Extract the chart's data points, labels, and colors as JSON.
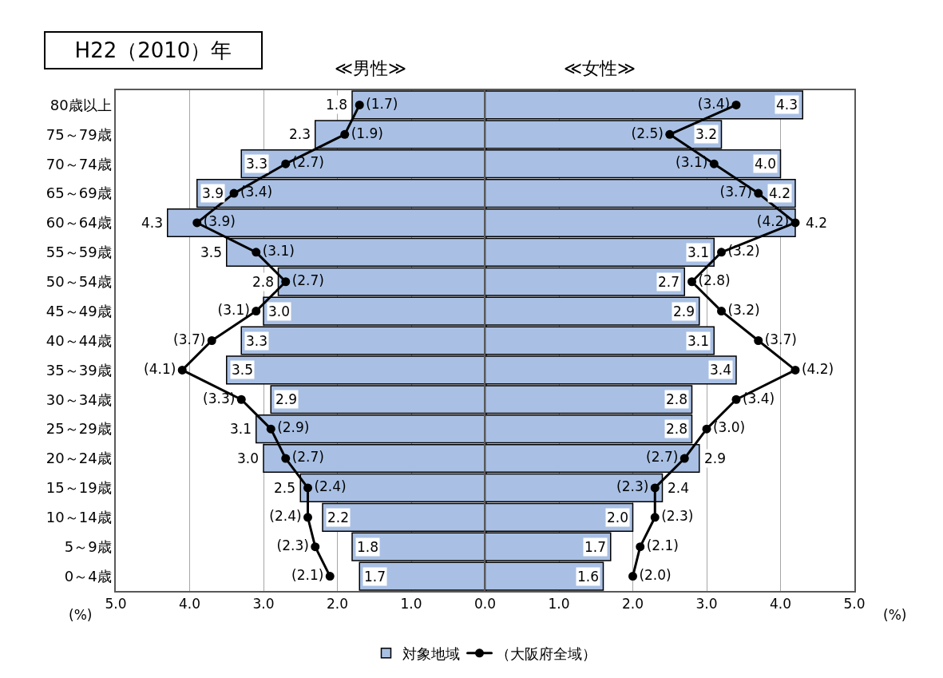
{
  "chart_data": [
    {
      "type": "bar",
      "orientation": "horizontal",
      "title": "≪男性≫",
      "xlabel": "(%)",
      "annotations": [
        "H22（2010）年"
      ],
      "categories": [
        "80歳以上",
        "75～79歳",
        "70～74歳",
        "65～69歳",
        "60～64歳",
        "55～59歳",
        "50～54歳",
        "45～49歳",
        "40～44歳",
        "35～39歳",
        "30～34歳",
        "25～29歳",
        "20～24歳",
        "15～19歳",
        "10～14歳",
        "5～9歳",
        "0～4歳"
      ],
      "series": [
        {
          "name": "対象地域",
          "color": "#a9c0e4",
          "values": [
            1.8,
            2.3,
            3.3,
            3.9,
            4.3,
            3.5,
            2.8,
            3.0,
            3.3,
            3.5,
            2.9,
            3.1,
            3.0,
            2.5,
            2.2,
            1.8,
            1.7
          ],
          "value_labels": [
            "1.8",
            "2.3",
            "3.3",
            "3.9",
            "4.3",
            "3.5",
            "2.8",
            "3.0",
            "3.3",
            "3.5",
            "2.9",
            "3.1",
            "3.0",
            "2.5",
            "2.2",
            "1.8",
            "1.7"
          ]
        },
        {
          "name": "（大阪府全域）",
          "type": "line",
          "color": "#000000",
          "values": [
            1.7,
            1.9,
            2.7,
            3.4,
            3.9,
            3.1,
            2.7,
            3.1,
            3.7,
            4.1,
            3.3,
            2.9,
            2.7,
            2.4,
            2.4,
            2.3,
            2.1
          ],
          "value_labels": [
            "(1.7)",
            "(1.9)",
            "(2.7)",
            "(3.4)",
            "(3.9)",
            "(3.1)",
            "(2.7)",
            "(3.1)",
            "(3.7)",
            "(4.1)",
            "(3.3)",
            "(2.9)",
            "(2.7)",
            "(2.4)",
            "(2.4)",
            "(2.3)",
            "(2.1)"
          ]
        }
      ],
      "xlim": [
        5,
        0
      ],
      "xticks": [
        {
          "value": 5,
          "label": "5.0"
        },
        {
          "value": 4,
          "label": "4.0"
        },
        {
          "value": 3,
          "label": "3.0"
        },
        {
          "value": 2,
          "label": "2.0"
        },
        {
          "value": 1,
          "label": "1.0"
        },
        {
          "value": 0,
          "label": "0.0"
        }
      ],
      "grid": "x",
      "legend": "bottom",
      "marker": "circle"
    },
    {
      "type": "bar",
      "orientation": "horizontal",
      "title": "≪女性≫",
      "xlabel": "(%)",
      "categories": [
        "80歳以上",
        "75～79歳",
        "70～74歳",
        "65～69歳",
        "60～64歳",
        "55～59歳",
        "50～54歳",
        "45～49歳",
        "40～44歳",
        "35～39歳",
        "30～34歳",
        "25～29歳",
        "20～24歳",
        "15～19歳",
        "10～14歳",
        "5～9歳",
        "0～4歳"
      ],
      "series": [
        {
          "color": "#a9c0e4",
          "values": [
            4.3,
            3.2,
            4.0,
            4.2,
            4.2,
            3.1,
            2.7,
            2.9,
            3.1,
            3.4,
            2.8,
            2.8,
            2.9,
            2.4,
            2.0,
            1.7,
            1.6
          ],
          "value_labels": [
            "4.3",
            "3.2",
            "4.0",
            "4.2",
            "4.2",
            "3.1",
            "2.7",
            "2.9",
            "3.1",
            "3.4",
            "2.8",
            "2.8",
            "2.9",
            "2.4",
            "2.0",
            "1.7",
            "1.6"
          ]
        },
        {
          "type": "line",
          "color": "#000000",
          "values": [
            3.4,
            2.5,
            3.1,
            3.7,
            4.2,
            3.2,
            2.8,
            3.2,
            3.7,
            4.2,
            3.4,
            3.0,
            2.7,
            2.3,
            2.3,
            2.1,
            2.0
          ],
          "value_labels": [
            "(3.4)",
            "(2.5)",
            "(3.1)",
            "(3.7)",
            "(4.2)",
            "(3.2)",
            "(2.8)",
            "(3.2)",
            "(3.7)",
            "(4.2)",
            "(3.4)",
            "(3.0)",
            "(2.7)",
            "(2.3)",
            "(2.3)",
            "(2.1)",
            "(2.0)"
          ]
        }
      ],
      "xlim": [
        0,
        5
      ],
      "xticks": [
        {
          "value": 1,
          "label": "1.0"
        },
        {
          "value": 2,
          "label": "2.0"
        },
        {
          "value": 3,
          "label": "3.0"
        },
        {
          "value": 4,
          "label": "4.0"
        },
        {
          "value": 5,
          "label": "5.0"
        }
      ],
      "grid": "x",
      "marker": "circle",
      "tick_labels": "x"
    }
  ]
}
